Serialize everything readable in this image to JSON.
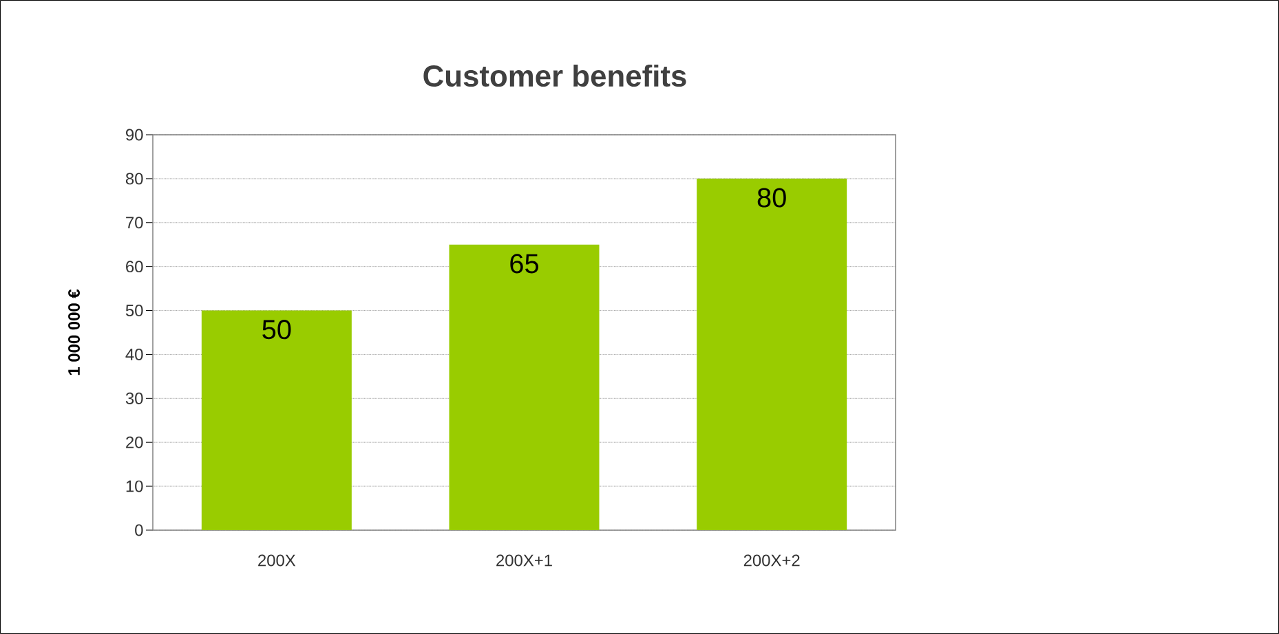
{
  "chart_data": {
    "type": "bar",
    "title": "Customer benefits",
    "ylabel": "1 000 000 €",
    "categories": [
      "200X",
      "200X+1",
      "200X+2"
    ],
    "values": [
      50,
      65,
      80
    ],
    "color": "#99cc00",
    "ylim": [
      0,
      90
    ],
    "yticks": [
      0,
      10,
      20,
      30,
      40,
      50,
      60,
      70,
      80,
      90
    ],
    "grid": "y",
    "data_labels": true
  }
}
